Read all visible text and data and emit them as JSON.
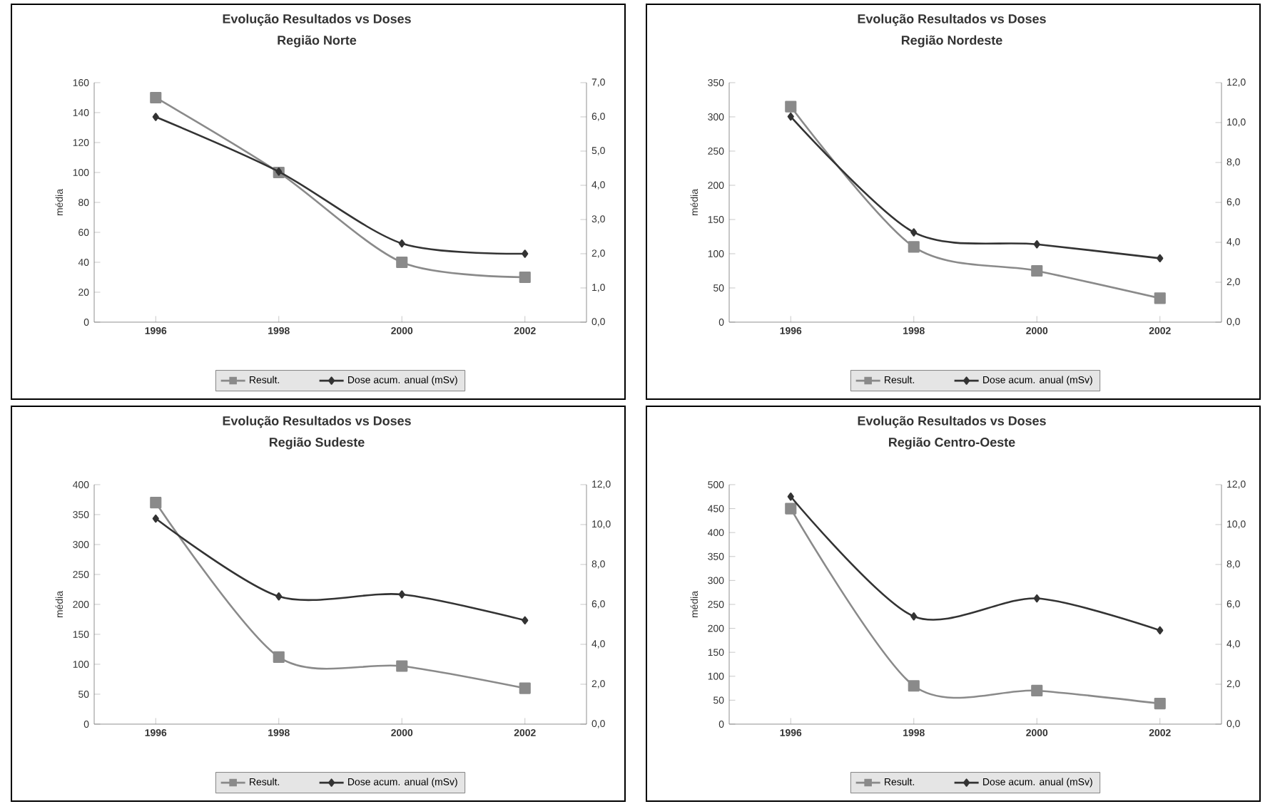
{
  "chart_data": [
    {
      "type": "line",
      "title": "Evolução Resultados vs Doses",
      "subtitle": "Região Norte",
      "ylabel": "média",
      "categories": [
        "1996",
        "1998",
        "2000",
        "2002"
      ],
      "ylim": [
        0,
        160
      ],
      "yticks": [
        0,
        20,
        40,
        60,
        80,
        100,
        120,
        140,
        160
      ],
      "y2lim": [
        0,
        7
      ],
      "y2ticks": [
        {
          "value": 0,
          "label": "0,0"
        },
        {
          "value": 1,
          "label": "1,0"
        },
        {
          "value": 2,
          "label": "2,0"
        },
        {
          "value": 3,
          "label": "3,0"
        },
        {
          "value": 4,
          "label": "4,0"
        },
        {
          "value": 5,
          "label": "5,0"
        },
        {
          "value": 6,
          "label": "6,0"
        },
        {
          "value": 7,
          "label": "7,0"
        }
      ],
      "legend": "bottom",
      "series": [
        {
          "name": "Result.",
          "color": "#8a8a8a",
          "marker": "square",
          "values": [
            150,
            100,
            40,
            30
          ]
        },
        {
          "name": "Dose acum. anual (mSv)",
          "color": "#333333",
          "marker": "diamond",
          "axis": "y2",
          "values": [
            6.0,
            4.4,
            2.3,
            2.0
          ]
        }
      ]
    },
    {
      "type": "line",
      "title": "Evolução Resultados vs Doses",
      "subtitle": "Região Nordeste",
      "ylabel": "média",
      "categories": [
        "1996",
        "1998",
        "2000",
        "2002"
      ],
      "ylim": [
        0,
        350
      ],
      "yticks": [
        0,
        50,
        100,
        150,
        200,
        250,
        300,
        350
      ],
      "y2lim": [
        0,
        12
      ],
      "y2ticks": [
        {
          "value": 0,
          "label": "0,0"
        },
        {
          "value": 2,
          "label": "2,0"
        },
        {
          "value": 4,
          "label": "4,0"
        },
        {
          "value": 6,
          "label": "6,0"
        },
        {
          "value": 8,
          "label": "8,0"
        },
        {
          "value": 10,
          "label": "10,0"
        },
        {
          "value": 12,
          "label": "12,0"
        }
      ],
      "legend": "bottom",
      "series": [
        {
          "name": "Result.",
          "color": "#8a8a8a",
          "marker": "square",
          "values": [
            315,
            110,
            75,
            35
          ]
        },
        {
          "name": "Dose acum. anual (mSv)",
          "color": "#333333",
          "marker": "diamond",
          "axis": "y2",
          "values": [
            10.3,
            4.5,
            3.9,
            3.2
          ]
        }
      ]
    },
    {
      "type": "line",
      "title": "Evolução Resultados vs Doses",
      "subtitle": "Região Sudeste",
      "ylabel": "média",
      "categories": [
        "1996",
        "1998",
        "2000",
        "2002"
      ],
      "ylim": [
        0,
        400
      ],
      "yticks": [
        0,
        50,
        100,
        150,
        200,
        250,
        300,
        350,
        400
      ],
      "y2lim": [
        0,
        12
      ],
      "y2ticks": [
        {
          "value": 0,
          "label": "0,0"
        },
        {
          "value": 2,
          "label": "2,0"
        },
        {
          "value": 4,
          "label": "4,0"
        },
        {
          "value": 6,
          "label": "6,0"
        },
        {
          "value": 8,
          "label": "8,0"
        },
        {
          "value": 10,
          "label": "10,0"
        },
        {
          "value": 12,
          "label": "12,0"
        }
      ],
      "legend": "bottom",
      "series": [
        {
          "name": "Result.",
          "color": "#8a8a8a",
          "marker": "square",
          "values": [
            370,
            112,
            97,
            60
          ]
        },
        {
          "name": "Dose acum. anual (mSv)",
          "color": "#333333",
          "marker": "diamond",
          "axis": "y2",
          "values": [
            10.3,
            6.4,
            6.5,
            5.2
          ]
        }
      ]
    },
    {
      "type": "line",
      "title": "Evolução Resultados vs Doses",
      "subtitle": "Região Centro-Oeste",
      "ylabel": "média",
      "categories": [
        "1996",
        "1998",
        "2000",
        "2002"
      ],
      "ylim": [
        0,
        500
      ],
      "yticks": [
        0,
        50,
        100,
        150,
        200,
        250,
        300,
        350,
        400,
        450,
        500
      ],
      "y2lim": [
        0,
        12
      ],
      "y2ticks": [
        {
          "value": 0,
          "label": "0,0"
        },
        {
          "value": 2,
          "label": "2,0"
        },
        {
          "value": 4,
          "label": "4,0"
        },
        {
          "value": 6,
          "label": "6,0"
        },
        {
          "value": 8,
          "label": "8,0"
        },
        {
          "value": 10,
          "label": "10,0"
        },
        {
          "value": 12,
          "label": "12,0"
        }
      ],
      "legend": "bottom",
      "series": [
        {
          "name": "Result.",
          "color": "#8a8a8a",
          "marker": "square",
          "values": [
            450,
            80,
            70,
            43
          ]
        },
        {
          "name": "Dose acum. anual (mSv)",
          "color": "#333333",
          "marker": "diamond",
          "axis": "y2",
          "values": [
            11.4,
            5.4,
            6.3,
            4.7
          ]
        }
      ]
    }
  ]
}
